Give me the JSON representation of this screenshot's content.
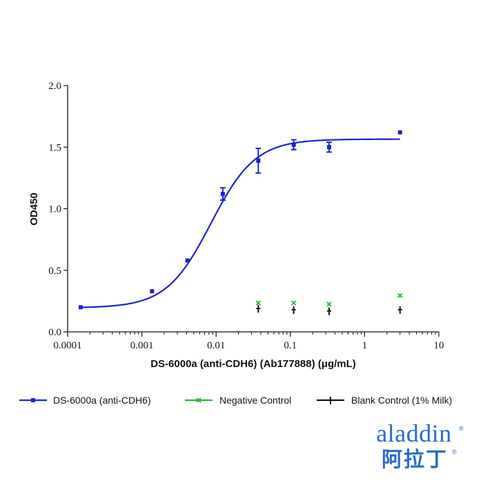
{
  "chart_data": {
    "type": "scatter",
    "xscale": "log",
    "xlim": [
      0.0001,
      10
    ],
    "ylim": [
      0.0,
      2.0
    ],
    "xticks": [
      0.0001,
      0.001,
      0.01,
      0.1,
      1,
      10
    ],
    "xtick_labels": [
      "0.0001",
      "0.001",
      "0.01",
      "0.1",
      "1",
      "10"
    ],
    "yticks": [
      0.0,
      0.5,
      1.0,
      1.5,
      2.0
    ],
    "ytick_labels": [
      "0.0",
      "0.5",
      "1.0",
      "1.5",
      "2.0"
    ],
    "xlabel": "DS-6000a (anti-CDH6) (Ab177888) (μg/mL)",
    "ylabel": "OD450",
    "legend_position": "bottom",
    "series": [
      {
        "name": "DS-6000a (anti-CDH6)",
        "color": "#1a26c8",
        "marker": "square",
        "x": [
          0.00015,
          0.00137,
          0.0041,
          0.0123,
          0.037,
          0.111,
          0.333,
          3.0
        ],
        "y": [
          0.2,
          0.33,
          0.58,
          1.12,
          1.39,
          1.52,
          1.5,
          1.62
        ],
        "err": [
          0.0,
          0.0,
          0.0,
          0.05,
          0.1,
          0.04,
          0.04,
          0.0
        ],
        "fit": {
          "model": "4PL",
          "bottom": 0.195,
          "top": 1.565,
          "ec50": 0.0085,
          "hill": 1.45
        }
      },
      {
        "name": "Negative Control",
        "color": "#2fb52f",
        "marker": "x",
        "x": [
          0.037,
          0.111,
          0.333,
          3.0
        ],
        "y": [
          0.235,
          0.235,
          0.225,
          0.295
        ]
      },
      {
        "name": "Blank Control (1% Milk)",
        "color": "#111111",
        "marker": "plus",
        "x": [
          0.037,
          0.111,
          0.333,
          3.0
        ],
        "y": [
          0.19,
          0.18,
          0.17,
          0.18
        ]
      }
    ]
  },
  "brand": {
    "latin": "aladdin",
    "cjk": "阿拉丁",
    "color": "#2a6bc4"
  }
}
